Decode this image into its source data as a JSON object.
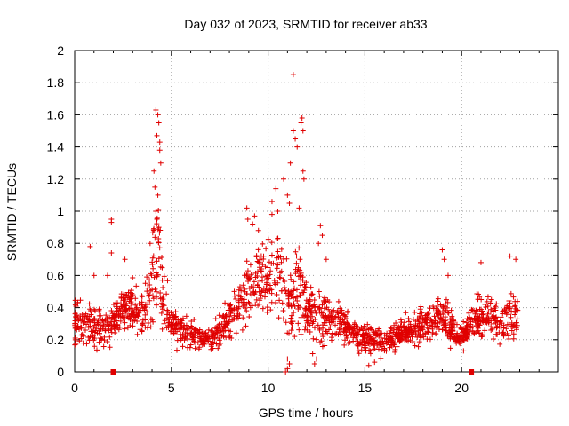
{
  "chart_data": {
    "type": "scatter",
    "title": "Day 032 of 2023, SRMTID for receiver ab33",
    "xlabel": "GPS time / hours",
    "ylabel": "SRMTID / TECUs",
    "xlim": [
      0,
      25
    ],
    "ylim": [
      0,
      2
    ],
    "xticks": [
      0,
      5,
      10,
      15,
      20
    ],
    "yticks": [
      0,
      0.2,
      0.4,
      0.6,
      0.8,
      1,
      1.2,
      1.4,
      1.6,
      1.8,
      2
    ],
    "ytick_labels": [
      "0",
      "0.2",
      "0.4",
      "0.6",
      "0.8",
      "1",
      "1.2",
      "1.4",
      "1.6",
      "1.8",
      "2"
    ],
    "xtick_labels": [
      "0",
      "5",
      "10",
      "15",
      "20"
    ],
    "grid": true,
    "marker": "+",
    "series_color": "#e00000",
    "annotations": [
      {
        "kind": "axis-marker",
        "x": 2.0,
        "y": 0
      },
      {
        "kind": "axis-marker",
        "x": 20.5,
        "y": 0
      }
    ],
    "series": [
      {
        "name": "SRMTID",
        "envelope": [
          [
            0.0,
            0.3,
            0.12
          ],
          [
            0.5,
            0.32,
            0.12
          ],
          [
            1.0,
            0.28,
            0.12
          ],
          [
            1.5,
            0.26,
            0.1
          ],
          [
            2.0,
            0.3,
            0.12
          ],
          [
            2.5,
            0.4,
            0.13
          ],
          [
            3.0,
            0.4,
            0.13
          ],
          [
            3.5,
            0.35,
            0.13
          ],
          [
            4.0,
            0.5,
            0.25
          ],
          [
            4.3,
            0.75,
            0.4
          ],
          [
            4.6,
            0.45,
            0.2
          ],
          [
            5.0,
            0.28,
            0.1
          ],
          [
            6.0,
            0.22,
            0.08
          ],
          [
            7.0,
            0.2,
            0.07
          ],
          [
            8.0,
            0.32,
            0.12
          ],
          [
            8.5,
            0.42,
            0.15
          ],
          [
            9.0,
            0.52,
            0.18
          ],
          [
            9.5,
            0.58,
            0.2
          ],
          [
            10.0,
            0.55,
            0.2
          ],
          [
            10.5,
            0.65,
            0.25
          ],
          [
            11.0,
            0.4,
            0.25
          ],
          [
            11.5,
            0.55,
            0.28
          ],
          [
            12.0,
            0.4,
            0.18
          ],
          [
            12.5,
            0.3,
            0.15
          ],
          [
            13.0,
            0.35,
            0.15
          ],
          [
            14.0,
            0.28,
            0.1
          ],
          [
            15.0,
            0.2,
            0.08
          ],
          [
            16.0,
            0.18,
            0.07
          ],
          [
            17.0,
            0.25,
            0.08
          ],
          [
            18.0,
            0.28,
            0.09
          ],
          [
            19.0,
            0.35,
            0.12
          ],
          [
            19.5,
            0.28,
            0.1
          ],
          [
            20.0,
            0.2,
            0.06
          ],
          [
            20.5,
            0.32,
            0.1
          ],
          [
            21.0,
            0.35,
            0.12
          ],
          [
            22.0,
            0.32,
            0.12
          ],
          [
            22.8,
            0.35,
            0.14
          ]
        ],
        "x_range": [
          0,
          22.9
        ],
        "point_count": 1800,
        "peaks": [
          [
            0.8,
            0.78
          ],
          [
            1.0,
            0.6
          ],
          [
            1.7,
            0.6
          ],
          [
            1.9,
            0.95
          ],
          [
            1.9,
            0.93
          ],
          [
            1.9,
            0.74
          ],
          [
            2.6,
            0.7
          ],
          [
            3.9,
            0.8
          ],
          [
            4.1,
            1.25
          ],
          [
            4.15,
            1.15
          ],
          [
            4.2,
            1.63
          ],
          [
            4.25,
            1.47
          ],
          [
            4.3,
            1.6
          ],
          [
            4.35,
            1.55
          ],
          [
            4.4,
            1.43
          ],
          [
            4.4,
            1.38
          ],
          [
            4.45,
            1.3
          ],
          [
            4.3,
            1.1
          ],
          [
            4.2,
            1.0
          ],
          [
            4.25,
            0.95
          ],
          [
            4.1,
            0.88
          ],
          [
            4.35,
            0.9
          ],
          [
            8.9,
            1.02
          ],
          [
            8.95,
            0.95
          ],
          [
            9.2,
            0.92
          ],
          [
            9.3,
            0.97
          ],
          [
            9.5,
            0.88
          ],
          [
            10.2,
            1.06
          ],
          [
            10.4,
            1.14
          ],
          [
            10.2,
            0.98
          ],
          [
            10.5,
            1.0
          ],
          [
            10.8,
            1.2
          ],
          [
            11.0,
            1.1
          ],
          [
            11.1,
            1.05
          ],
          [
            11.15,
            1.3
          ],
          [
            11.3,
            1.85
          ],
          [
            11.3,
            1.5
          ],
          [
            11.4,
            1.45
          ],
          [
            11.5,
            1.4
          ],
          [
            11.7,
            1.55
          ],
          [
            11.75,
            1.58
          ],
          [
            11.8,
            1.5
          ],
          [
            11.8,
            1.25
          ],
          [
            11.85,
            1.2
          ],
          [
            11.6,
            1.02
          ],
          [
            12.7,
            0.91
          ],
          [
            12.8,
            0.85
          ],
          [
            12.6,
            0.8
          ],
          [
            13.0,
            0.7
          ],
          [
            19.0,
            0.76
          ],
          [
            19.1,
            0.7
          ],
          [
            19.3,
            0.6
          ],
          [
            21.0,
            0.68
          ],
          [
            22.5,
            0.72
          ],
          [
            22.8,
            0.7
          ]
        ],
        "lows": [
          [
            10.9,
            0.0
          ],
          [
            11.0,
            0.02
          ],
          [
            11.1,
            0.05
          ],
          [
            11.0,
            0.08
          ],
          [
            12.4,
            0.05
          ],
          [
            12.5,
            0.08
          ],
          [
            15.5,
            0.06
          ],
          [
            15.2,
            0.04
          ]
        ]
      }
    ]
  }
}
